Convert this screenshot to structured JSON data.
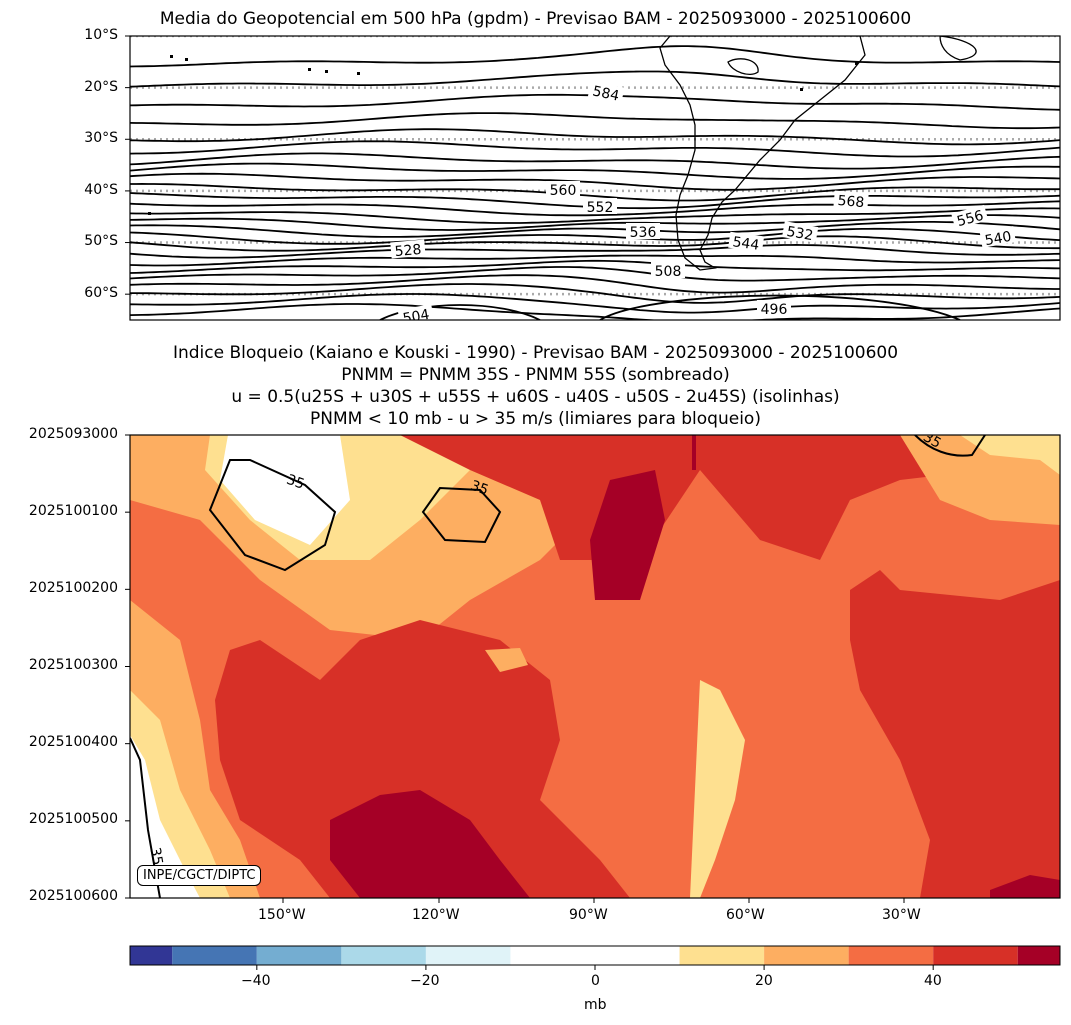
{
  "chart_data": [
    {
      "type": "contour",
      "title": "Media do Geopotencial em 500 hPa (gpdm) - Previsao BAM - 2025093000 - 2025100600",
      "y_tick_labels": [
        "10°S",
        "20°S",
        "30°S",
        "40°S",
        "50°S",
        "60°S"
      ],
      "contour_labels": [
        "584",
        "560",
        "552",
        "536",
        "528",
        "508",
        "504",
        "568",
        "556",
        "544",
        "532",
        "540",
        "496"
      ],
      "latitude_range": [
        -65,
        -10
      ],
      "gridlines": "dotted at 10° latitude intervals",
      "coastline": "South America"
    },
    {
      "type": "heatmap",
      "title_lines": [
        "Indice Bloqueio (Kaiano e Kouski - 1990) - Previsao BAM - 2025093000 - 2025100600",
        "PNMM = PNMM 35S - PNMM 55S (sombreado)",
        "u = 0.5(u25S + u30S + u55S + u60S - u40S - u50S - 2u45S) (isolinhas)",
        "PNMM < 10 mb - u > 35 m/s (limiares para bloqueio)"
      ],
      "y_tick_labels": [
        "2025093000",
        "2025100100",
        "2025100200",
        "2025100300",
        "2025100400",
        "2025100500",
        "2025100600"
      ],
      "x_tick_labels": [
        "150°W",
        "120°W",
        "90°W",
        "60°W",
        "30°W"
      ],
      "contour_labels": [
        "35",
        "35",
        "35",
        "35"
      ],
      "contour_level": 35,
      "colorbar": {
        "ticks": [
          "−40",
          "−20",
          "0",
          "20",
          "40"
        ],
        "label": "mb",
        "range": [
          -55,
          55
        ],
        "boundaries": [
          -55,
          -50,
          -40,
          -30,
          -20,
          -10,
          10,
          20,
          30,
          40,
          50,
          55
        ],
        "colors": [
          "#313695",
          "#4575b4",
          "#74add1",
          "#abd9e9",
          "#e0f3f8",
          "#ffffff",
          "#fee090",
          "#fdae61",
          "#f46d43",
          "#d73027",
          "#a50026"
        ]
      },
      "credit": "INPE/CGCT/DIPTC"
    }
  ]
}
